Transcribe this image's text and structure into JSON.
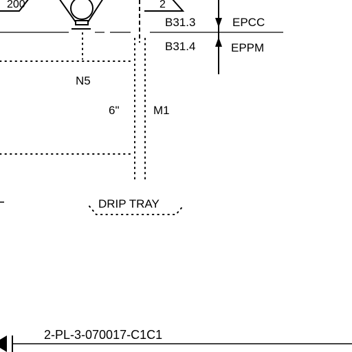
{
  "labels": {
    "tag_top_left": "200",
    "tag_top_triangle": "2",
    "code_b313": "B31.3",
    "code_b314": "B31.4",
    "spec_epcc": "EPCC",
    "spec_eppm": "EPPM",
    "nozzle_n5": "N5",
    "pipe_size": "6\"",
    "nozzle_m1": "M1",
    "drip_tray": "DRIP TRAY",
    "line_number": "2-PL-3-070017-C1C1"
  }
}
